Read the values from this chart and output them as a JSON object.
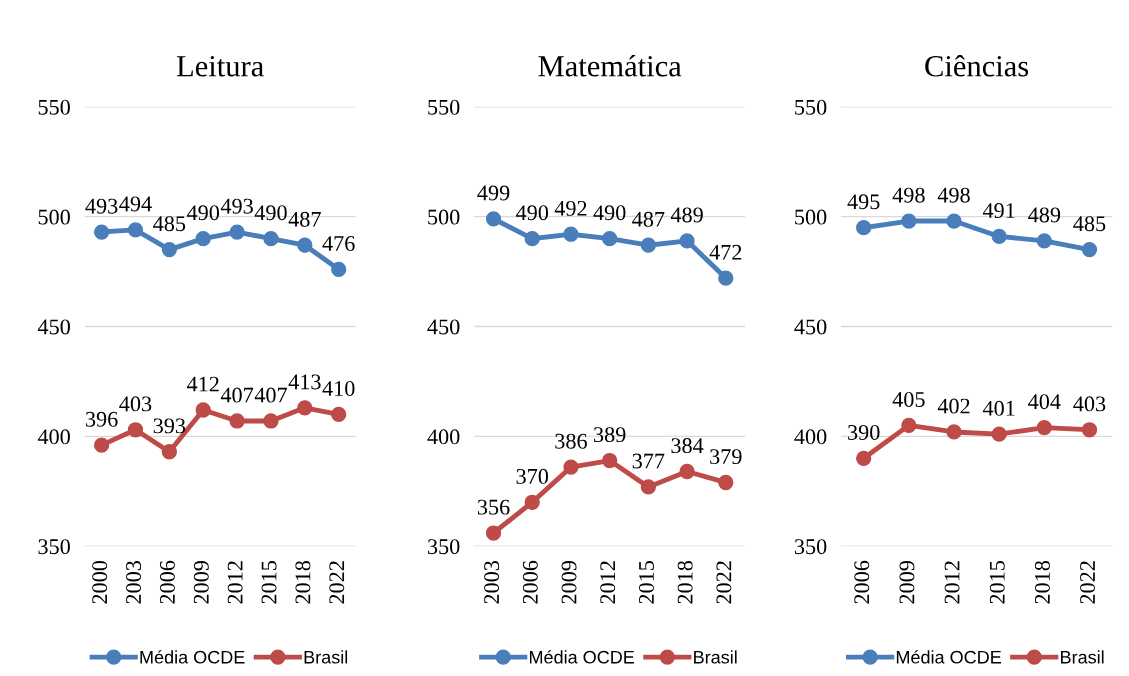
{
  "chart_data": [
    {
      "type": "line",
      "title": "Leitura",
      "categories": [
        "2000",
        "2003",
        "2006",
        "2009",
        "2012",
        "2015",
        "2018",
        "2022"
      ],
      "series": [
        {
          "name": "Média OCDE",
          "color": "#4a7ebb",
          "values": [
            493,
            494,
            485,
            490,
            493,
            490,
            487,
            476
          ]
        },
        {
          "name": "Brasil",
          "color": "#be4b48",
          "values": [
            396,
            403,
            393,
            412,
            407,
            407,
            413,
            410
          ]
        }
      ],
      "ylim": [
        350,
        550
      ],
      "yticks": [
        350,
        400,
        450,
        500,
        550
      ],
      "grid": "y",
      "legend": "bottom",
      "marker": "circle",
      "line_style": "solid",
      "data_labels": true
    },
    {
      "type": "line",
      "title": "Matemática",
      "categories": [
        "2003",
        "2006",
        "2009",
        "2012",
        "2015",
        "2018",
        "2022"
      ],
      "series": [
        {
          "name": "Média OCDE",
          "color": "#4a7ebb",
          "values": [
            499,
            490,
            492,
            490,
            487,
            489,
            472
          ]
        },
        {
          "name": "Brasil",
          "color": "#be4b48",
          "values": [
            356,
            370,
            386,
            389,
            377,
            384,
            379
          ]
        }
      ],
      "ylim": [
        350,
        550
      ],
      "yticks": [
        350,
        400,
        450,
        500,
        550
      ],
      "grid": "y",
      "legend": "bottom",
      "marker": "circle",
      "line_style": "solid",
      "data_labels": true
    },
    {
      "type": "line",
      "title": "Ciências",
      "categories": [
        "2006",
        "2009",
        "2012",
        "2015",
        "2018",
        "2022"
      ],
      "series": [
        {
          "name": "Média OCDE",
          "color": "#4a7ebb",
          "values": [
            495,
            498,
            498,
            491,
            489,
            485
          ]
        },
        {
          "name": "Brasil",
          "color": "#be4b48",
          "values": [
            390,
            405,
            402,
            401,
            404,
            403
          ]
        }
      ],
      "ylim": [
        350,
        550
      ],
      "yticks": [
        350,
        400,
        450,
        500,
        550
      ],
      "grid": "y",
      "legend": "bottom",
      "marker": "circle",
      "line_style": "solid",
      "data_labels": true
    }
  ]
}
